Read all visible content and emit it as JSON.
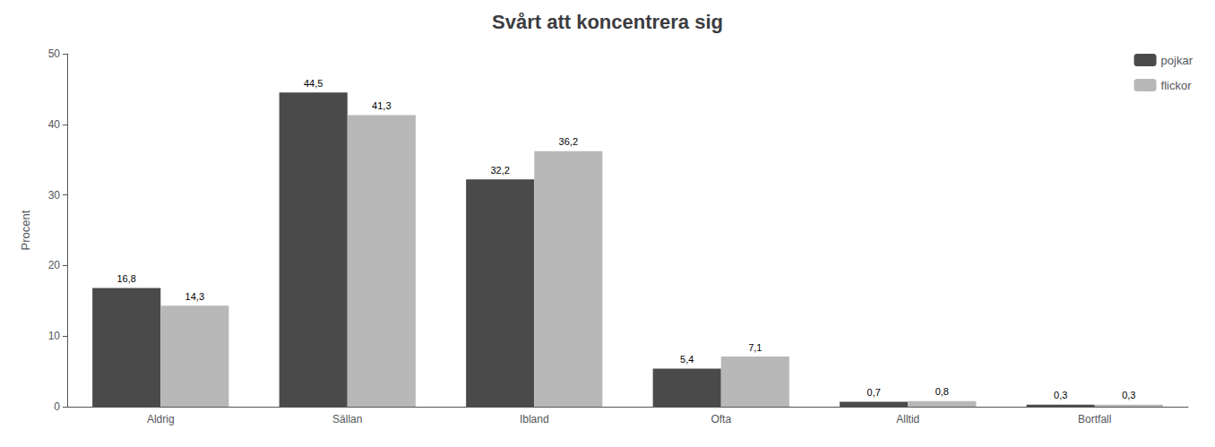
{
  "chart_data": {
    "type": "bar",
    "title": "Svårt att koncentrera sig",
    "ylabel": "Procent",
    "categories": [
      "Aldrig",
      "Sällan",
      "Ibland",
      "Ofta",
      "Alltid",
      "Bortfall"
    ],
    "series": [
      {
        "name": "pojkar",
        "color": "#4a4a4a",
        "values": [
          16.8,
          44.5,
          32.2,
          5.4,
          0.7,
          0.3
        ],
        "value_labels": [
          "16,8",
          "44,5",
          "32,2",
          "5,4",
          "0,7",
          "0,3"
        ]
      },
      {
        "name": "flickor",
        "color": "#b8b8b8",
        "values": [
          14.3,
          41.3,
          36.2,
          7.1,
          0.8,
          0.3
        ],
        "value_labels": [
          "14,3",
          "41,3",
          "36,2",
          "7,1",
          "0,8",
          "0,3"
        ]
      }
    ],
    "ylim": [
      0,
      50
    ],
    "yticks": [
      0,
      10,
      20,
      30,
      40,
      50
    ],
    "grid": false,
    "legend": "upper right",
    "data_labels": true
  }
}
